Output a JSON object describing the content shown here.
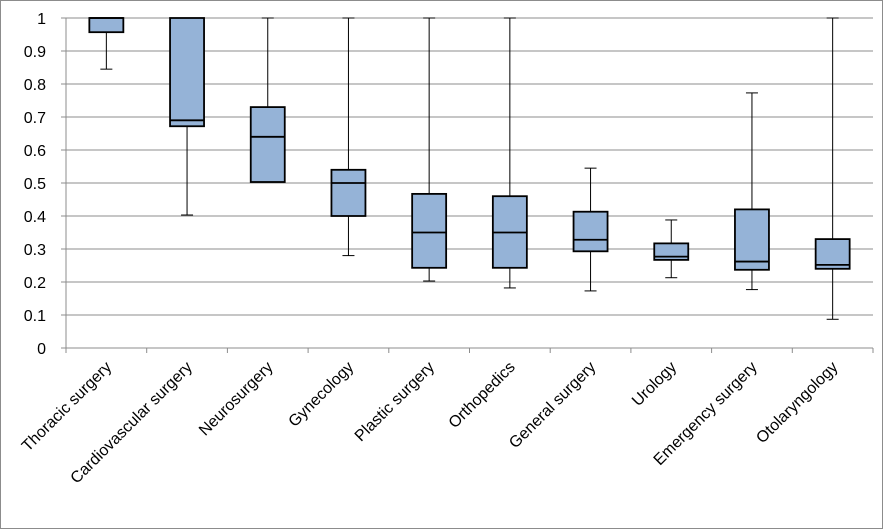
{
  "chart_data": {
    "type": "box",
    "title": "",
    "xlabel": "",
    "ylabel": "",
    "ylim": [
      0,
      1
    ],
    "yticks": [
      0,
      0.1,
      0.2,
      0.3,
      0.4,
      0.5,
      0.6,
      0.7,
      0.8,
      0.9,
      1
    ],
    "ytick_labels": [
      "0",
      "0.1",
      "0.2",
      "0.3",
      "0.4",
      "0.5",
      "0.6",
      "0.7",
      "0.8",
      "0.9",
      "1"
    ],
    "grid": "horizontal",
    "legend": "none",
    "box_color": "#95b3d7",
    "categories": [
      "Thoracic surgery",
      "Cardiovascular surgery",
      "Neurosurgery",
      "Gynecology",
      "Plastic surgery",
      "Orthopedics",
      "General surgery",
      "Urology",
      "Emergency surgery",
      "Otolaryngology"
    ],
    "boxes": [
      {
        "min": 0.845,
        "q1": 0.957,
        "median": 1.0,
        "q3": 1.0,
        "max": 1.0
      },
      {
        "min": 0.403,
        "q1": 0.672,
        "median": 0.69,
        "q3": 1.0,
        "max": 1.0
      },
      {
        "min": 0.503,
        "q1": 0.503,
        "median": 0.64,
        "q3": 0.73,
        "max": 1.0
      },
      {
        "min": 0.28,
        "q1": 0.4,
        "median": 0.5,
        "q3": 0.54,
        "max": 1.0
      },
      {
        "min": 0.203,
        "q1": 0.243,
        "median": 0.35,
        "q3": 0.467,
        "max": 1.0
      },
      {
        "min": 0.182,
        "q1": 0.243,
        "median": 0.35,
        "q3": 0.46,
        "max": 1.0
      },
      {
        "min": 0.173,
        "q1": 0.293,
        "median": 0.328,
        "q3": 0.413,
        "max": 0.545
      },
      {
        "min": 0.213,
        "q1": 0.267,
        "median": 0.277,
        "q3": 0.317,
        "max": 0.388
      },
      {
        "min": 0.177,
        "q1": 0.237,
        "median": 0.262,
        "q3": 0.42,
        "max": 0.773
      },
      {
        "min": 0.087,
        "q1": 0.24,
        "median": 0.252,
        "q3": 0.33,
        "max": 1.0
      }
    ]
  }
}
